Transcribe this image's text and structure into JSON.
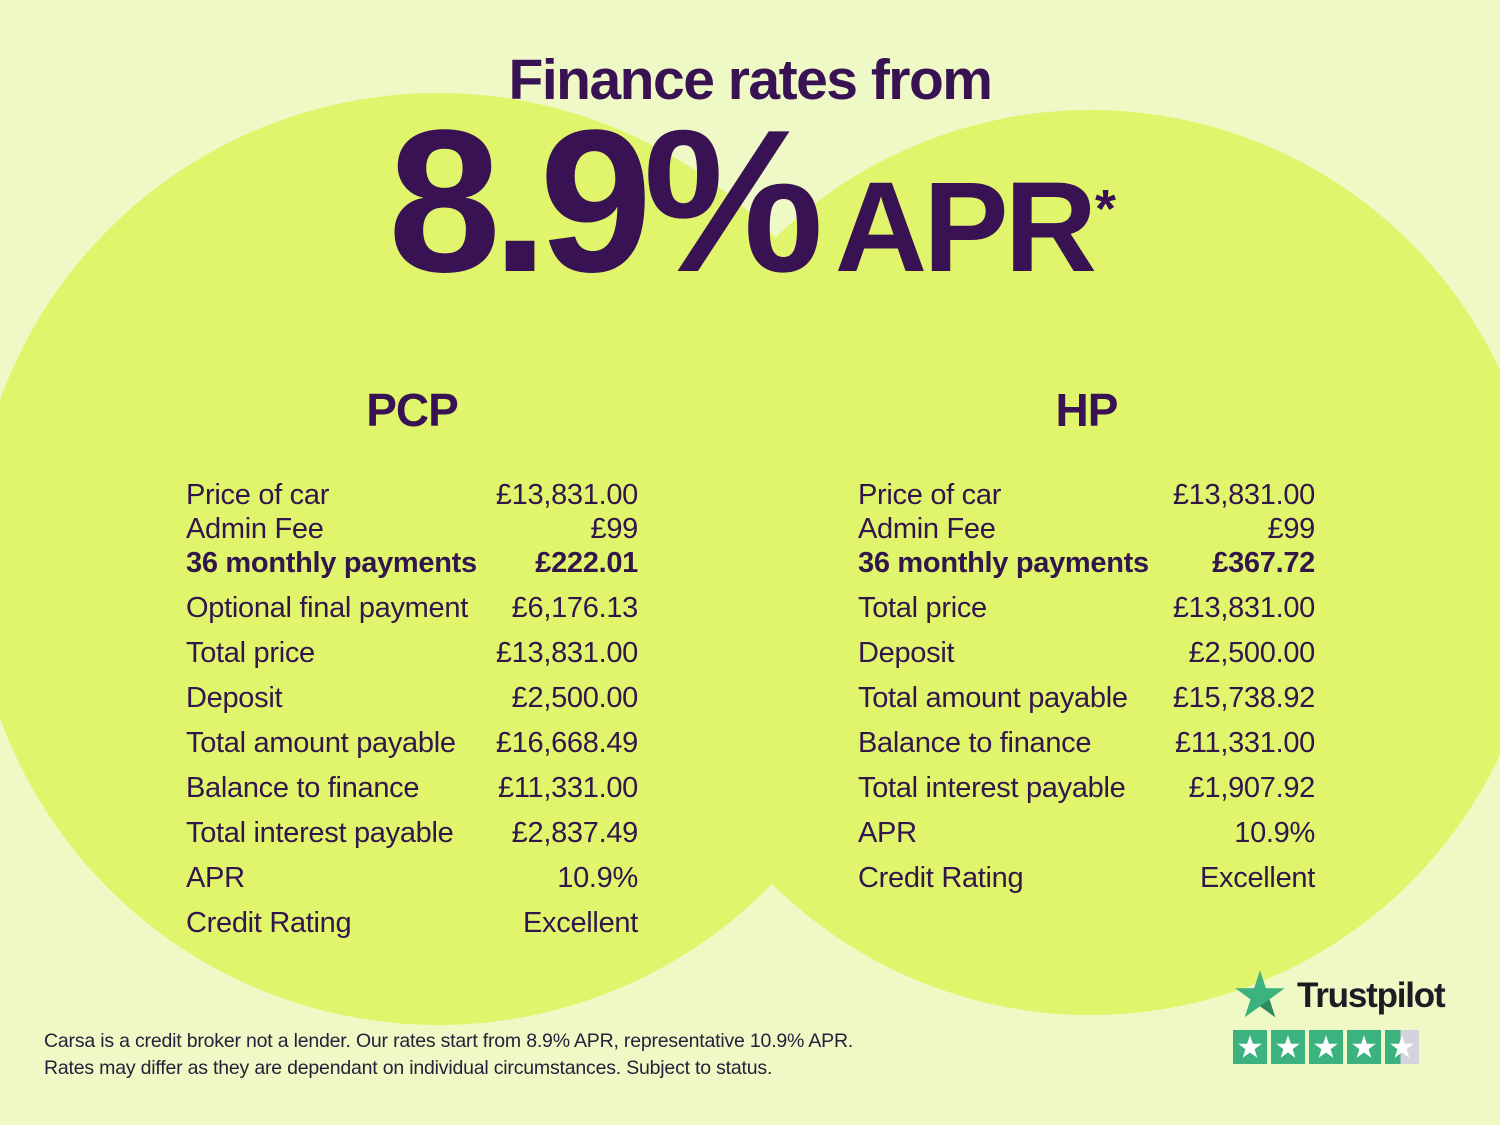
{
  "hero": {
    "title": "Finance rates from",
    "rate": "8.9%",
    "rate_suffix": "APR",
    "asterisk": "*"
  },
  "tables": {
    "pcp": {
      "heading": "PCP",
      "rows": [
        {
          "label": "Price of car",
          "value": "£13,831.00"
        },
        {
          "label": "Admin Fee",
          "value": "£99"
        },
        {
          "label": "36 monthly payments",
          "value": "£222.01",
          "bold": true
        },
        {
          "label": "Optional final payment",
          "value": "£6,176.13"
        },
        {
          "label": "Total price",
          "value": "£13,831.00"
        },
        {
          "label": "Deposit",
          "value": "£2,500.00"
        },
        {
          "label": "Total amount payable",
          "value": "£16,668.49"
        },
        {
          "label": "Balance to finance",
          "value": "£11,331.00"
        },
        {
          "label": "Total interest payable",
          "value": "£2,837.49"
        },
        {
          "label": "APR",
          "value": "10.9%"
        },
        {
          "label": "Credit Rating",
          "value": "Excellent"
        }
      ]
    },
    "hp": {
      "heading": "HP",
      "rows": [
        {
          "label": "Price of car",
          "value": "£13,831.00"
        },
        {
          "label": "Admin Fee",
          "value": "£99"
        },
        {
          "label": "36 monthly payments",
          "value": "£367.72",
          "bold": true
        },
        {
          "label": "Total price",
          "value": "£13,831.00"
        },
        {
          "label": "Deposit",
          "value": "£2,500.00"
        },
        {
          "label": "Total amount payable",
          "value": "£15,738.92"
        },
        {
          "label": "Balance to finance",
          "value": "£11,331.00"
        },
        {
          "label": "Total interest payable",
          "value": "£1,907.92"
        },
        {
          "label": "APR",
          "value": "10.9%"
        },
        {
          "label": "Credit Rating",
          "value": "Excellent"
        }
      ]
    }
  },
  "trustpilot": {
    "brand": "Trustpilot",
    "stars_total": 5,
    "last_star_fill": 0.45,
    "rating_value": 4.5
  },
  "disclaimer": {
    "lines": [
      "Carsa is a credit broker not a lender. Our rates start from 8.9% APR, representative 10.9% APR.",
      "Rates may differ as they are dependant on individual circumstances. Subject to status."
    ]
  },
  "colors": {
    "background": "#eef9c6",
    "circle": "#e0f56b",
    "purple": "#381253",
    "table_text": "#32164b",
    "disclaimer_text": "#27203a",
    "tp_green": "#3cb27e",
    "tp_green_dark": "#2f8a61",
    "tp_gray": "#d3d3dd",
    "tp_text": "#1c1c24"
  }
}
